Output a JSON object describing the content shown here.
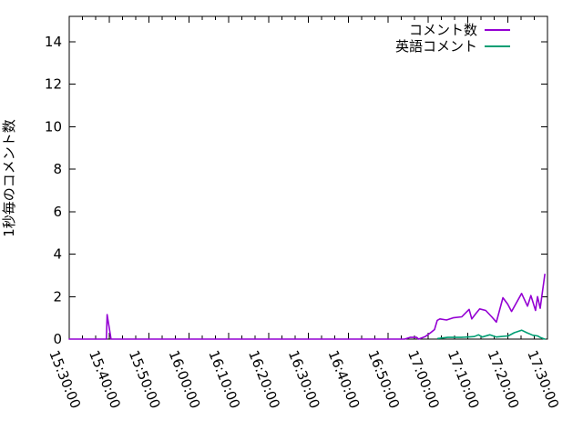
{
  "colors": {
    "background": "#ffffff",
    "axis": "#000000",
    "text": "#000000",
    "series_comment": "#9400d3",
    "series_english": "#009e73"
  },
  "chart_data": {
    "type": "line",
    "title": "",
    "xlabel": "",
    "ylabel": "1秒毎のコメント数",
    "grid": false,
    "legend_position": "top-right-inside",
    "xlim": [
      "15:30:00",
      "17:30:00"
    ],
    "ylim": [
      0,
      15.2
    ],
    "x_major_tick_seconds": 600,
    "x_minor_tick_seconds": 200,
    "x_tick_labels": [
      "15:30:00",
      "15:40:00",
      "15:50:00",
      "16:00:00",
      "16:10:00",
      "16:20:00",
      "16:30:00",
      "16:40:00",
      "16:50:00",
      "17:00:00",
      "17:10:00",
      "17:20:00",
      "17:30:00"
    ],
    "y_ticks": [
      "0",
      "2",
      "4",
      "6",
      "8",
      "10",
      "12",
      "14"
    ],
    "series": [
      {
        "name": "コメント数",
        "color": "#9400d3",
        "points": [
          [
            "15:30:00",
            0
          ],
          [
            "15:39:20",
            0
          ],
          [
            "15:39:30",
            1.15
          ],
          [
            "15:40:30",
            0
          ],
          [
            "16:54:10",
            0
          ],
          [
            "16:55:30",
            0.08
          ],
          [
            "16:57:10",
            0.08
          ],
          [
            "16:57:40",
            0
          ],
          [
            "16:59:20",
            0.12
          ],
          [
            "17:00:40",
            0.3
          ],
          [
            "17:01:40",
            0.45
          ],
          [
            "17:02:20",
            0.88
          ],
          [
            "17:03:00",
            0.95
          ],
          [
            "17:04:40",
            0.9
          ],
          [
            "17:06:20",
            1.0
          ],
          [
            "17:08:30",
            1.05
          ],
          [
            "17:10:20",
            1.4
          ],
          [
            "17:11:00",
            0.95
          ],
          [
            "17:12:00",
            1.2
          ],
          [
            "17:13:00",
            1.42
          ],
          [
            "17:14:30",
            1.35
          ],
          [
            "17:16:00",
            1.05
          ],
          [
            "17:17:10",
            0.8
          ],
          [
            "17:18:50",
            1.95
          ],
          [
            "17:20:00",
            1.65
          ],
          [
            "17:21:00",
            1.3
          ],
          [
            "17:23:30",
            2.15
          ],
          [
            "17:25:00",
            1.55
          ],
          [
            "17:25:50",
            2.05
          ],
          [
            "17:27:00",
            1.35
          ],
          [
            "17:27:30",
            2.0
          ],
          [
            "17:28:10",
            1.45
          ],
          [
            "17:29:20",
            3.05
          ]
        ]
      },
      {
        "name": "英語コメント",
        "color": "#009e73",
        "points": [
          [
            "17:02:30",
            0.03
          ],
          [
            "17:03:00",
            0.04
          ],
          [
            "17:05:00",
            0.08
          ],
          [
            "17:08:20",
            0.08
          ],
          [
            "17:10:00",
            0.1
          ],
          [
            "17:11:40",
            0.12
          ],
          [
            "17:12:40",
            0.2
          ],
          [
            "17:13:40",
            0.1
          ],
          [
            "17:15:30",
            0.2
          ],
          [
            "17:17:10",
            0.1
          ],
          [
            "17:18:20",
            0.12
          ],
          [
            "17:20:10",
            0.15
          ],
          [
            "17:21:40",
            0.3
          ],
          [
            "17:23:30",
            0.42
          ],
          [
            "17:24:50",
            0.3
          ],
          [
            "17:26:20",
            0.18
          ],
          [
            "17:27:30",
            0.15
          ],
          [
            "17:28:10",
            0.08
          ],
          [
            "17:29:00",
            0.02
          ],
          [
            "17:29:20",
            0
          ]
        ]
      }
    ]
  }
}
